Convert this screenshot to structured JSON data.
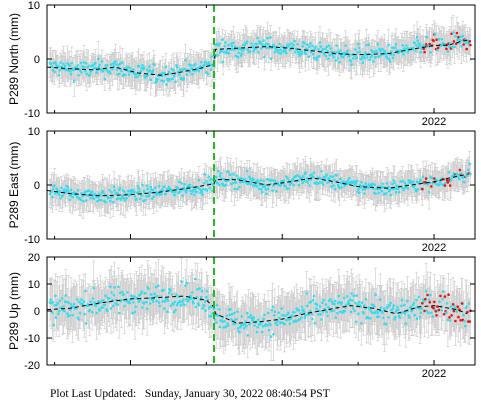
{
  "footer": {
    "label": "Plot Last Updated:",
    "value": "Sunday, January 30, 2022 08:40:54 PST"
  },
  "colors": {
    "points": "#33ddee",
    "recent_points": "#ee1111",
    "error_bars": "#c8c8c8",
    "trend": "#000000",
    "event_line": "#22bb22"
  },
  "chart_data": [
    {
      "type": "scatter",
      "ylabel": "P289 North (mm)",
      "ylim": [
        -10,
        10
      ],
      "yticks": [
        -10,
        0,
        10
      ],
      "xlim": [
        2019.45,
        2022.27
      ],
      "xtick_labels": [
        {
          "x": 2022.0,
          "label": "2022"
        }
      ],
      "event_x": 2020.55,
      "jump": 3.0,
      "errorbar_mm": 2.5,
      "noise_mm": 1.2,
      "red_after": 2021.92,
      "trend": [
        [
          2019.45,
          -1.5
        ],
        [
          2019.6,
          -1.8
        ],
        [
          2019.75,
          -2.0
        ],
        [
          2019.9,
          -1.5
        ],
        [
          2020.05,
          -2.6
        ],
        [
          2020.2,
          -3.0
        ],
        [
          2020.3,
          -2.6
        ],
        [
          2020.45,
          -1.8
        ],
        [
          2020.55,
          -1.0
        ],
        [
          2020.56,
          1.8
        ],
        [
          2020.7,
          2.0
        ],
        [
          2020.9,
          2.3
        ],
        [
          2021.05,
          2.0
        ],
        [
          2021.2,
          1.5
        ],
        [
          2021.35,
          1.0
        ],
        [
          2021.5,
          0.8
        ],
        [
          2021.7,
          1.0
        ],
        [
          2021.85,
          1.8
        ],
        [
          2022.0,
          2.5
        ],
        [
          2022.1,
          2.6
        ],
        [
          2022.17,
          3.2
        ],
        [
          2022.22,
          3.5
        ]
      ]
    },
    {
      "type": "scatter",
      "ylabel": "P289 East (mm)",
      "ylim": [
        -10,
        10
      ],
      "yticks": [
        -10,
        0,
        10
      ],
      "xlim": [
        2019.45,
        2022.27
      ],
      "xtick_labels": [
        {
          "x": 2022.0,
          "label": "2022"
        }
      ],
      "event_x": 2020.55,
      "jump": 1.5,
      "errorbar_mm": 2.5,
      "noise_mm": 1.0,
      "red_after": 2021.92,
      "trend": [
        [
          2019.45,
          -1.0
        ],
        [
          2019.6,
          -1.6
        ],
        [
          2019.8,
          -2.0
        ],
        [
          2020.0,
          -1.8
        ],
        [
          2020.2,
          -1.3
        ],
        [
          2020.4,
          -0.5
        ],
        [
          2020.55,
          0.2
        ],
        [
          2020.56,
          1.0
        ],
        [
          2020.7,
          1.0
        ],
        [
          2020.9,
          0.0
        ],
        [
          2021.05,
          0.6
        ],
        [
          2021.2,
          1.3
        ],
        [
          2021.35,
          0.6
        ],
        [
          2021.5,
          -0.3
        ],
        [
          2021.7,
          -0.6
        ],
        [
          2021.85,
          0.0
        ],
        [
          2022.0,
          0.6
        ],
        [
          2022.1,
          1.3
        ],
        [
          2022.22,
          2.0
        ]
      ]
    },
    {
      "type": "scatter",
      "ylabel": "P289 Up (mm)",
      "ylim": [
        -20,
        20
      ],
      "yticks": [
        -20,
        -10,
        0,
        10,
        20
      ],
      "xlim": [
        2019.45,
        2022.27
      ],
      "xtick_labels": [
        {
          "x": 2022.0,
          "label": "2022"
        }
      ],
      "event_x": 2020.55,
      "jump": -3.0,
      "errorbar_mm": 8.0,
      "noise_mm": 3.5,
      "red_after": 2021.92,
      "trend": [
        [
          2019.45,
          0.5
        ],
        [
          2019.6,
          1.0
        ],
        [
          2019.8,
          3.0
        ],
        [
          2020.0,
          4.5
        ],
        [
          2020.2,
          5.0
        ],
        [
          2020.35,
          5.5
        ],
        [
          2020.5,
          4.0
        ],
        [
          2020.55,
          1.5
        ],
        [
          2020.56,
          -1.0
        ],
        [
          2020.7,
          -4.5
        ],
        [
          2020.85,
          -4.0
        ],
        [
          2021.0,
          -3.0
        ],
        [
          2021.15,
          -1.0
        ],
        [
          2021.3,
          0.5
        ],
        [
          2021.45,
          2.0
        ],
        [
          2021.6,
          1.0
        ],
        [
          2021.75,
          -1.0
        ],
        [
          2021.9,
          1.5
        ],
        [
          2022.0,
          2.0
        ],
        [
          2022.15,
          0.5
        ],
        [
          2022.22,
          -1.0
        ]
      ]
    }
  ]
}
